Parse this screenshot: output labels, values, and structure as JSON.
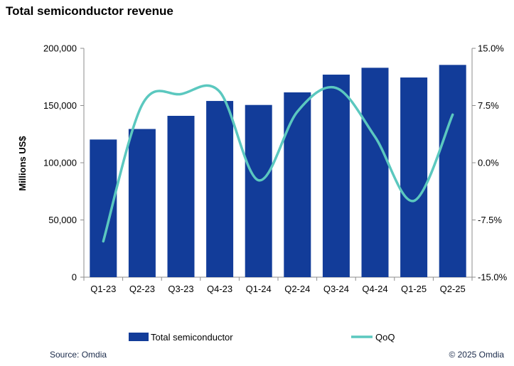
{
  "chart_data": {
    "type": "bar+line",
    "title": "Total semiconductor revenue",
    "categories": [
      "Q1-23",
      "Q2-23",
      "Q3-23",
      "Q4-23",
      "Q1-24",
      "Q2-24",
      "Q3-24",
      "Q4-24",
      "Q1-25",
      "Q2-25"
    ],
    "series": [
      {
        "name": "Total semiconductor",
        "kind": "bar",
        "axis": "left",
        "values": [
          120300,
          129500,
          141000,
          154000,
          150500,
          161500,
          177000,
          183000,
          174500,
          185500
        ]
      },
      {
        "name": "QoQ",
        "kind": "line",
        "axis": "right",
        "values": [
          -10.3,
          7.6,
          9.0,
          9.3,
          -2.3,
          6.7,
          9.8,
          3.4,
          -5.0,
          6.3
        ]
      }
    ],
    "ylabel": "Millions US$",
    "ylim": [
      0,
      200000
    ],
    "y_ticks": [
      "0",
      "50,000",
      "100,000",
      "150,000",
      "200,000"
    ],
    "y2lim": [
      -15,
      15
    ],
    "y2_ticks": [
      "-15.0%",
      "-7.5%",
      "0.0%",
      "7.5%",
      "15.0%"
    ],
    "legend": "bottom",
    "colors": {
      "bar": "#123c99",
      "line": "#5bc8bf",
      "axis": "#8c8c8c"
    }
  },
  "footer": {
    "source": "Source: Omdia",
    "copyright": "© 2025 Omdia"
  }
}
